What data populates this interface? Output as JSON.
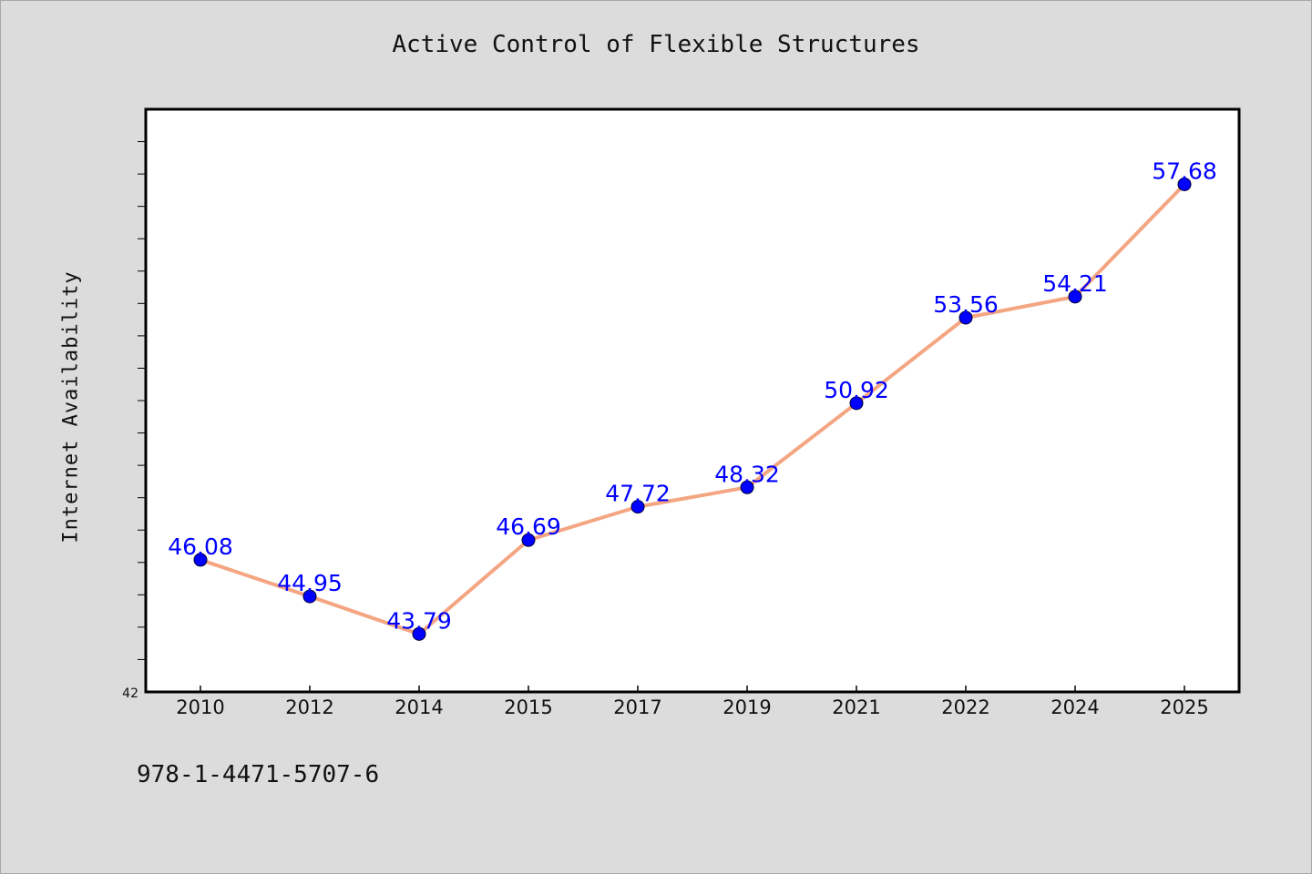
{
  "chart_data": {
    "type": "line",
    "title": "Active Control of Flexible Structures",
    "xlabel": "",
    "ylabel": "Internet Availability",
    "categories": [
      "2010",
      "2012",
      "2014",
      "2015",
      "2017",
      "2019",
      "2021",
      "2022",
      "2024",
      "2025"
    ],
    "series": [
      {
        "values": [
          46.08,
          44.95,
          43.79,
          46.69,
          47.72,
          48.32,
          50.92,
          53.56,
          54.21,
          57.68
        ],
        "data_labels": [
          "46.08",
          "44.95",
          "43.79",
          "46.69",
          "47.72",
          "48.32",
          "50.92",
          "53.56",
          "54.21",
          "57.68"
        ]
      }
    ],
    "ylim": [
      42,
      60
    ],
    "y_min_label": "42",
    "grid": false,
    "legend": "none",
    "colors": {
      "line": "#f4a582",
      "marker": "#0000ff",
      "data_label": "#0000ff",
      "background": "#dcdcdc",
      "plot_background": "#ffffff"
    }
  },
  "footer": {
    "note": "978-1-4471-5707-6"
  }
}
